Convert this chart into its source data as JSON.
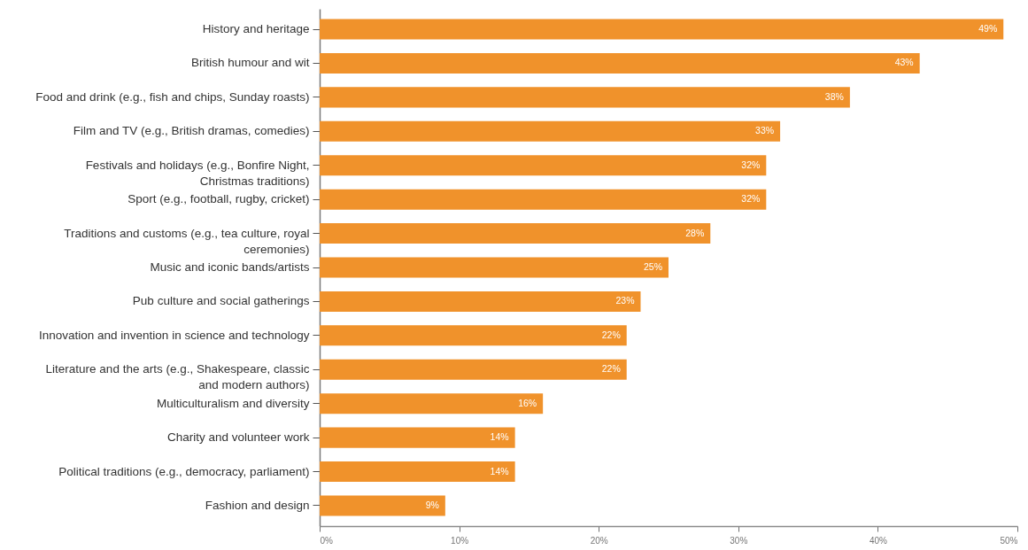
{
  "chart_data": {
    "type": "bar",
    "orientation": "horizontal",
    "categories": [
      "History and heritage",
      "British humour and wit",
      "Food and drink (e.g., fish and chips, Sunday roasts)",
      "Film and TV (e.g., British dramas, comedies)",
      "Festivals and holidays (e.g., Bonfire Night, Christmas traditions)",
      "Sport (e.g., football, rugby, cricket)",
      "Traditions and customs (e.g., tea culture, royal ceremonies)",
      "Music and iconic bands/artists",
      "Pub culture and social gatherings",
      "Innovation and invention in science and technology",
      "Literature and the arts (e.g., Shakespeare, classic and modern authors)",
      "Multiculturalism and diversity",
      "Charity and volunteer work",
      "Political traditions (e.g., democracy, parliament)",
      "Fashion and design"
    ],
    "values": [
      49,
      43,
      38,
      33,
      32,
      32,
      28,
      25,
      23,
      22,
      22,
      16,
      14,
      14,
      9
    ],
    "value_labels": [
      "49%",
      "43%",
      "38%",
      "33%",
      "32%",
      "32%",
      "28%",
      "25%",
      "23%",
      "22%",
      "22%",
      "16%",
      "14%",
      "14%",
      "9%"
    ],
    "color": "#f0922b",
    "xlim": [
      0,
      50
    ],
    "xticks": [
      {
        "value": 0,
        "label": "0%"
      },
      {
        "value": 10,
        "label": "10%"
      },
      {
        "value": 20,
        "label": "20%"
      },
      {
        "value": 30,
        "label": "30%"
      },
      {
        "value": 40,
        "label": "40%"
      },
      {
        "value": 50,
        "label": "50%"
      }
    ]
  }
}
